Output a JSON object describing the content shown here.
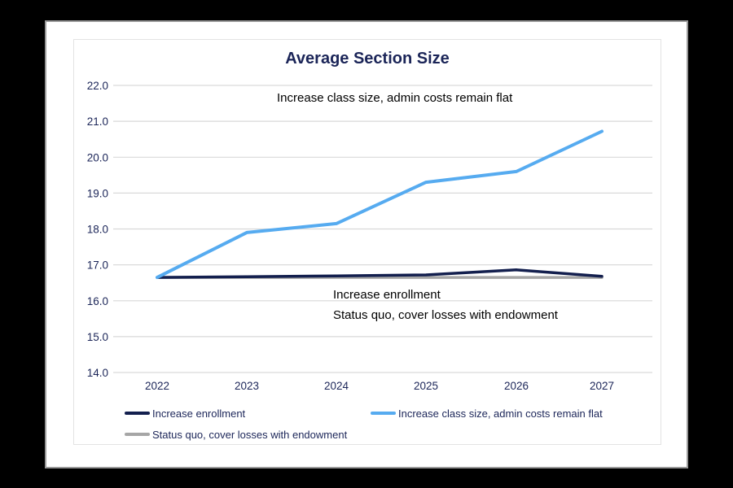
{
  "window": {
    "background": "#000000"
  },
  "chart": {
    "title": "Average Section Size",
    "annotations": {
      "top": "Increase class size, admin costs remain flat",
      "mid_line1": "Increase enrollment",
      "mid_line2": "Status quo, cover losses with endowment"
    }
  },
  "legend": {
    "items": [
      {
        "label": "Increase enrollment",
        "color": "#131f4e"
      },
      {
        "label": "Increase class size, admin costs remain flat",
        "color": "#56abf0"
      },
      {
        "label": "Status quo, cover losses with endowment",
        "color": "#a6a6a6"
      }
    ]
  },
  "colors": {
    "title_text": "#1b2558",
    "axis_text": "#1b2558",
    "legend_text": "#1b2558",
    "gridline": "#d9d9d9",
    "annotation_text": "#000000",
    "line_increase_enrollment": "#131f4e",
    "line_increase_class_size": "#56abf0",
    "line_status_quo": "#a6a6a6",
    "page_background": "#ffffff",
    "outer_background": "#000000"
  },
  "chart_data": {
    "type": "line",
    "title": "Average Section Size",
    "categories": [
      "2022",
      "2023",
      "2024",
      "2025",
      "2026",
      "2027"
    ],
    "series": [
      {
        "name": "Increase enrollment",
        "color": "#131f4e",
        "values": [
          16.65,
          16.67,
          16.69,
          16.72,
          16.86,
          16.68
        ]
      },
      {
        "name": "Increase class size, admin costs remain flat",
        "color": "#56abf0",
        "values": [
          16.65,
          17.9,
          18.15,
          19.3,
          19.6,
          20.72
        ]
      },
      {
        "name": "Status quo, cover losses with endowment",
        "color": "#a6a6a6",
        "values": [
          16.65,
          16.65,
          16.65,
          16.65,
          16.65,
          16.65
        ]
      }
    ],
    "ylim": [
      14.0,
      22.0
    ],
    "y_ticks": [
      "14.0",
      "15.0",
      "16.0",
      "17.0",
      "18.0",
      "19.0",
      "20.0",
      "21.0",
      "22.0"
    ],
    "x_tick_labels": [
      "2022",
      "2023",
      "2024",
      "2025",
      "2026",
      "2027"
    ],
    "grid": true,
    "gridlines": "horizontal",
    "legend_position": "bottom",
    "xlabel": "",
    "ylabel": "",
    "annotations": [
      "Increase class size, admin costs remain flat",
      "Increase enrollment",
      "Status quo, cover losses with endowment"
    ]
  }
}
